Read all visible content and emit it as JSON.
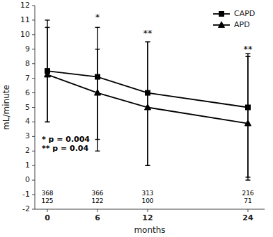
{
  "chart_data": {
    "type": "line",
    "xlabel": "months",
    "ylabel": "mL/minute",
    "x": [
      0,
      6,
      12,
      24
    ],
    "xlim": [
      -1.5,
      26
    ],
    "ylim": [
      -2,
      12
    ],
    "xticks": [
      0,
      6,
      12,
      24
    ],
    "yticks": [
      -2,
      -1,
      0,
      1,
      2,
      3,
      4,
      5,
      6,
      7,
      8,
      9,
      10,
      11,
      12
    ],
    "grid": false,
    "legend": "upper right",
    "series": [
      {
        "name": "CAPD",
        "color": "#000000",
        "marker": "square",
        "line_style": "solid",
        "values": [
          7.5,
          7.1,
          6.0,
          5.0
        ],
        "error_lower": [
          3.5,
          4.3,
          5.0,
          4.8
        ],
        "error_upper": [
          3.5,
          3.4,
          3.5,
          3.5
        ]
      },
      {
        "name": "APD",
        "color": "#000000",
        "marker": "triangle",
        "line_style": "solid",
        "values": [
          7.25,
          6.0,
          5.0,
          3.9
        ],
        "error_lower": [
          3.25,
          4.0,
          4.0,
          3.9
        ],
        "error_upper": [
          3.25,
          3.0,
          4.5,
          4.8
        ]
      }
    ],
    "annotations": [
      {
        "x": 6,
        "y": 11.0,
        "text": "*"
      },
      {
        "x": 12,
        "y": 9.9,
        "text": "**"
      },
      {
        "x": 24,
        "y": 8.8,
        "text": "**"
      }
    ],
    "annotation": [
      "* p = 0.004",
      "** p = 0.04"
    ],
    "n_labels": [
      {
        "y": -0.75,
        "labels": [
          "368",
          "366",
          "313",
          "216"
        ]
      },
      {
        "y": -1.25,
        "labels": [
          "125",
          "122",
          "100",
          "71"
        ]
      }
    ]
  }
}
